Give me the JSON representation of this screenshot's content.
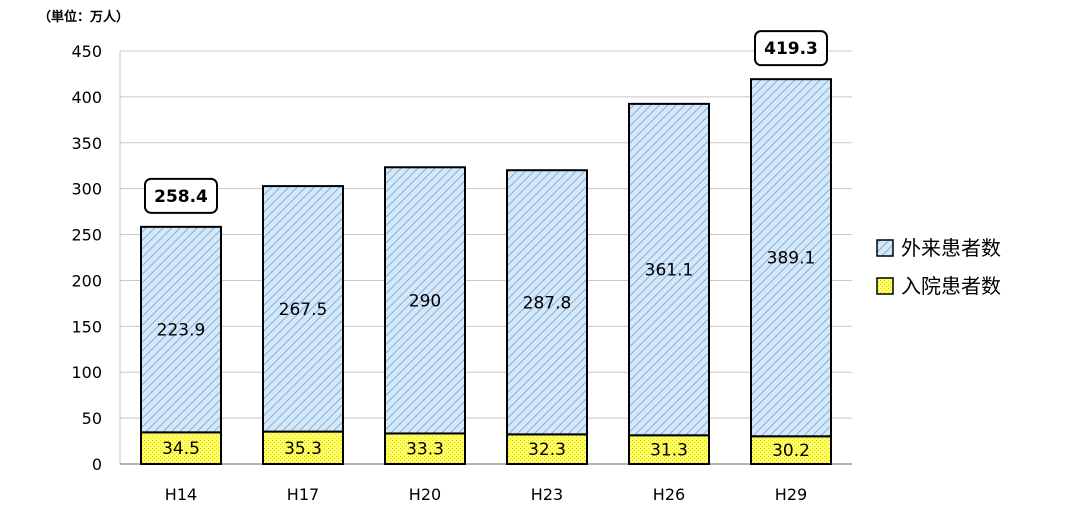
{
  "chart_data": {
    "type": "bar",
    "stacked": true,
    "unit_label": "（単位：万人）",
    "categories": [
      "H14",
      "H17",
      "H20",
      "H23",
      "H26",
      "H29"
    ],
    "series": [
      {
        "name": "入院患者数",
        "values": [
          34.5,
          35.3,
          33.3,
          32.3,
          31.3,
          30.2
        ],
        "labels": [
          "34.5",
          "35.3",
          "33.3",
          "32.3",
          "31.3",
          "30.2"
        ],
        "color": "#ffff66"
      },
      {
        "name": "外来患者数",
        "values": [
          223.9,
          267.5,
          290,
          287.8,
          361.1,
          389.1
        ],
        "labels": [
          "223.9",
          "267.5",
          "290",
          "287.8",
          "361.1",
          "389.1"
        ],
        "color": "#b4d3ee"
      }
    ],
    "callouts": [
      {
        "category": "H14",
        "value": 258.4,
        "label": "258.4"
      },
      {
        "category": "H29",
        "value": 419.3,
        "label": "419.3"
      }
    ],
    "ylim": [
      0,
      450
    ],
    "yticks": [
      0,
      50,
      100,
      150,
      200,
      250,
      300,
      350,
      400,
      450
    ],
    "grid": true,
    "legend_position": "right",
    "legend_order": [
      "外来患者数",
      "入院患者数"
    ]
  }
}
